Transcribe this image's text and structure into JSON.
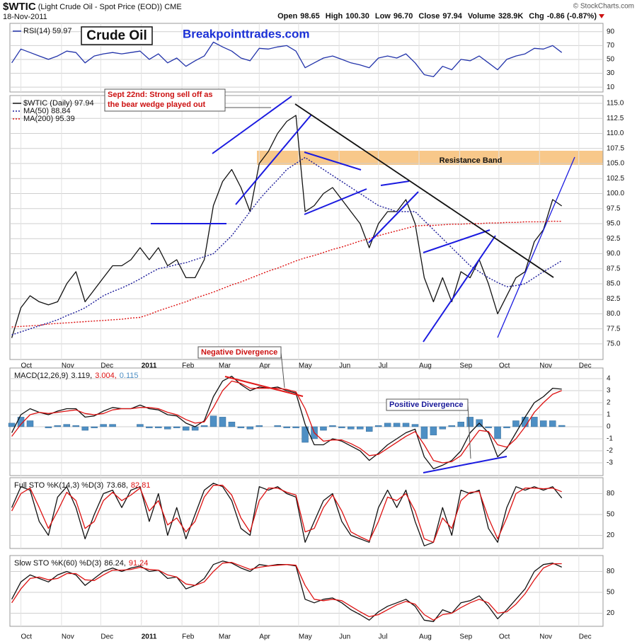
{
  "header": {
    "symbol": "$WTIC",
    "description": "(Light Crude Oil - Spot Price (EOD))",
    "exchange": "CME",
    "date": "18-Nov-2011",
    "copyright": "© StockCharts.com",
    "quote": [
      [
        "Open",
        "98.65"
      ],
      [
        "High",
        "100.30"
      ],
      [
        "Low",
        "96.70"
      ],
      [
        "Close",
        "97.94"
      ],
      [
        "Volume",
        "328.9K"
      ],
      [
        "Chg",
        "-0.86 (-0.87%)"
      ]
    ]
  },
  "chart_data": [
    {
      "type": "line",
      "annotations": [
        "Crude Oil",
        "Breakpointtrades.com"
      ],
      "xlim": [
        -0.2,
        64.5
      ],
      "ylim": [
        3,
        102
      ],
      "yticks": [
        90,
        70,
        50,
        30,
        10
      ],
      "grid": true,
      "series": [
        {
          "name": "RSI(14) 59.97",
          "color": "#2233aa",
          "values": [
            45,
            65,
            60,
            55,
            50,
            55,
            62,
            60,
            45,
            55,
            58,
            60,
            58,
            60,
            62,
            50,
            58,
            45,
            52,
            40,
            48,
            55,
            75,
            68,
            62,
            52,
            48,
            66,
            65,
            68,
            70,
            62,
            38,
            45,
            52,
            55,
            50,
            45,
            42,
            38,
            52,
            55,
            52,
            58,
            45,
            28,
            25,
            40,
            35,
            50,
            48,
            55,
            45,
            35,
            50,
            55,
            58,
            66,
            65,
            70,
            59.97
          ]
        }
      ]
    },
    {
      "type": "line",
      "annotations": [
        "Sept 22nd: Strong sell off as",
        "the bear wedge played out",
        "Resistance Band"
      ],
      "xlim": [
        -0.2,
        64.5
      ],
      "ylim": [
        72.4,
        116.3
      ],
      "grid": true,
      "xticks": [
        {
          "value": 1,
          "label": "Oct"
        },
        {
          "value": 5.43,
          "label": "Nov"
        },
        {
          "value": 9.71,
          "label": "Dec"
        },
        {
          "value": 14.14,
          "label": "2011"
        },
        {
          "value": 18.57,
          "label": "Feb"
        },
        {
          "value": 22.57,
          "label": "Mar"
        },
        {
          "value": 27,
          "label": "Apr"
        },
        {
          "value": 31.29,
          "label": "May"
        },
        {
          "value": 35.71,
          "label": "Jun"
        },
        {
          "value": 40,
          "label": "Jul"
        },
        {
          "value": 44.43,
          "label": "Aug"
        },
        {
          "value": 48.86,
          "label": "Sep"
        },
        {
          "value": 53.14,
          "label": "Oct"
        },
        {
          "value": 57.57,
          "label": "Nov"
        },
        {
          "value": 61.86,
          "label": "Dec"
        }
      ],
      "yticks": [
        {
          "value": 75,
          "label": "75.0"
        },
        {
          "value": 77.5,
          "label": "77.5"
        },
        {
          "value": 80,
          "label": "80.0"
        },
        {
          "value": 82.5,
          "label": "82.5"
        },
        {
          "value": 85,
          "label": "85.0"
        },
        {
          "value": 87.5,
          "label": "87.5"
        },
        {
          "value": 90,
          "label": "90.0"
        },
        {
          "value": 92.5,
          "label": "92.5"
        },
        {
          "value": 95,
          "label": "95.0"
        },
        {
          "value": 97.5,
          "label": "97.5"
        },
        {
          "value": 100,
          "label": "100.0"
        },
        {
          "value": 102.5,
          "label": "102.5"
        },
        {
          "value": 105,
          "label": "105.0"
        },
        {
          "value": 107.5,
          "label": "107.5"
        },
        {
          "value": 110,
          "label": "110.0"
        },
        {
          "value": 112.5,
          "label": "112.5"
        },
        {
          "value": 115,
          "label": "115.0"
        }
      ],
      "series": [
        {
          "name": "$WTIC (Daily) 97.94",
          "color": "#111111",
          "values": [
            76,
            81,
            83,
            82,
            81.5,
            82,
            85,
            87,
            82,
            84,
            86,
            88,
            88,
            89,
            91,
            89,
            91,
            88,
            89,
            86,
            86,
            89,
            98,
            102,
            104,
            101,
            97,
            105,
            107,
            110,
            112,
            113,
            97,
            98,
            100,
            101,
            99,
            97,
            95,
            91,
            95,
            97,
            97,
            99,
            95,
            86,
            82,
            86,
            82,
            87,
            86,
            89,
            85,
            80,
            83,
            86,
            87,
            92,
            94,
            99,
            97.94
          ]
        },
        {
          "name": "MA(50) 88.84",
          "color": "#1a1a99",
          "dash": "dotted",
          "values": [
            76.5,
            77,
            77.5,
            78,
            78.5,
            79,
            79.7,
            80.3,
            81,
            82,
            83,
            83.7,
            84.3,
            85,
            85.8,
            86.7,
            87.5,
            87.8,
            88.2,
            88.5,
            89,
            89.5,
            90,
            91.5,
            93,
            95,
            97,
            99,
            100.7,
            102.3,
            104,
            105,
            106,
            105,
            104,
            103,
            102,
            101,
            100,
            99,
            98,
            97.5,
            97,
            97,
            97,
            95.5,
            94,
            92.5,
            91,
            89.5,
            88,
            87,
            86,
            85.2,
            84.5,
            84.7,
            85,
            86,
            87,
            87.9,
            88.84
          ]
        },
        {
          "name": "MA(200) 95.39",
          "color": "#dd1111",
          "dash": "dotted",
          "values": [
            77.8,
            77.9,
            78.0,
            78.1,
            78.3,
            78.4,
            78.5,
            78.6,
            78.7,
            78.8,
            78.9,
            79.0,
            79.1,
            79.3,
            79.4,
            79.9,
            80.5,
            81.0,
            81.5,
            82.0,
            82.6,
            83.1,
            83.6,
            84.2,
            84.8,
            85.3,
            85.9,
            86.5,
            87.1,
            87.6,
            88.2,
            88.8,
            89.3,
            89.7,
            90.2,
            90.7,
            91.1,
            91.6,
            92.1,
            92.5,
            93.0,
            93.4,
            93.8,
            94.2,
            94.6,
            94.7,
            94.7,
            94.8,
            94.9,
            94.9,
            95.0,
            95.0,
            95.1,
            95.1,
            95.2,
            95.2,
            95.3,
            95.3,
            95.3,
            95.4,
            95.39
          ]
        }
      ]
    },
    {
      "type": "line",
      "label": "MACD(12,26,9)",
      "annotations": [
        "Negative Divergence",
        "Positive Divergence"
      ],
      "xlim": [
        -0.2,
        64.5
      ],
      "ylim": [
        -4.06,
        4.88
      ],
      "yticks": [
        4,
        3,
        2,
        1,
        0,
        -1,
        -2,
        -3
      ],
      "grid": true,
      "series": [
        {
          "name": "3.119,",
          "color": "#111111",
          "values": [
            -0.5,
            1,
            1.5,
            1.2,
            1,
            1.3,
            1.5,
            1.5,
            0.8,
            0.9,
            1.3,
            1.6,
            1.5,
            1.5,
            1.8,
            1.5,
            1.4,
            1,
            0.9,
            0.3,
            0,
            0.5,
            2.5,
            3.8,
            4.2,
            3.5,
            3,
            3.3,
            3.2,
            3.3,
            3,
            2.8,
            0.2,
            -1.5,
            -1.5,
            -1,
            -1.2,
            -1.6,
            -2,
            -2.8,
            -2.2,
            -1.5,
            -1,
            -0.5,
            -0.2,
            -2.5,
            -3.5,
            -3.2,
            -2.8,
            -2,
            -0.5,
            0.3,
            -0.5,
            -2.5,
            -1.8,
            -0.5,
            0.8,
            2,
            2.5,
            3.2,
            3.119
          ]
        },
        {
          "name": "3.004,",
          "color": "#dd1111",
          "values": [
            -0.8,
            0.2,
            1,
            1.2,
            1.1,
            1.2,
            1.3,
            1.4,
            1.1,
            1,
            1.1,
            1.4,
            1.5,
            1.5,
            1.6,
            1.6,
            1.5,
            1.2,
            1,
            0.6,
            0.3,
            0.4,
            1.6,
            3,
            3.8,
            3.6,
            3.2,
            3.2,
            3.2,
            3.2,
            3.1,
            2.9,
            1.5,
            -0.5,
            -1.2,
            -1.1,
            -1.1,
            -1.4,
            -1.8,
            -2.4,
            -2.3,
            -1.8,
            -1.3,
            -0.8,
            -0.4,
            -1.5,
            -2.8,
            -3,
            -2.9,
            -2.4,
            -1.3,
            -0.3,
            -0.4,
            -1.5,
            -1.7,
            -1,
            0,
            1.2,
            2,
            2.7,
            3.004
          ]
        },
        {
          "name": "0.115",
          "color": "#4e8fc4",
          "type": "bar",
          "values": [
            0.3,
            0.8,
            0.5,
            0,
            -0.1,
            0.1,
            0.2,
            0.1,
            -0.3,
            -0.1,
            0.2,
            0.2,
            0,
            0,
            0.2,
            -0.1,
            -0.1,
            -0.2,
            -0.1,
            -0.3,
            -0.3,
            0.1,
            0.9,
            0.8,
            0.4,
            -0.1,
            -0.2,
            0.1,
            0,
            0.1,
            -0.1,
            -0.1,
            -1.3,
            -1,
            -0.3,
            0.1,
            -0.1,
            -0.2,
            -0.2,
            -0.4,
            0.1,
            0.3,
            0.3,
            0.3,
            0.2,
            -1,
            -0.7,
            -0.2,
            0.1,
            0.4,
            0.8,
            0.6,
            -0.1,
            -1,
            -0.1,
            0.5,
            0.8,
            0.8,
            0.5,
            0.5,
            0.115
          ]
        }
      ]
    },
    {
      "type": "line",
      "label": "Full STO %K(14,3) %D(3)",
      "xlim": [
        -0.2,
        64.5
      ],
      "ylim": [
        1.2,
        102.9
      ],
      "yticks": [
        80,
        50,
        20
      ],
      "grid": true,
      "series": [
        {
          "name": "73.68,",
          "color": "#111111",
          "values": [
            60,
            90,
            85,
            40,
            20,
            75,
            90,
            60,
            15,
            50,
            80,
            85,
            60,
            85,
            90,
            40,
            80,
            20,
            60,
            15,
            50,
            85,
            95,
            90,
            70,
            30,
            20,
            90,
            85,
            90,
            80,
            75,
            10,
            40,
            70,
            80,
            40,
            20,
            15,
            10,
            60,
            85,
            60,
            85,
            40,
            5,
            10,
            60,
            20,
            85,
            80,
            85,
            30,
            10,
            60,
            90,
            85,
            90,
            85,
            90,
            73.68
          ]
        },
        {
          "name": "82.81",
          "color": "#dd1111",
          "values": [
            55,
            80,
            88,
            60,
            30,
            55,
            82,
            70,
            30,
            40,
            70,
            82,
            70,
            78,
            88,
            55,
            70,
            35,
            45,
            25,
            40,
            75,
            92,
            92,
            78,
            45,
            25,
            70,
            88,
            88,
            82,
            78,
            25,
            30,
            60,
            78,
            55,
            25,
            18,
            12,
            40,
            75,
            70,
            80,
            55,
            15,
            10,
            45,
            30,
            70,
            82,
            83,
            45,
            15,
            45,
            80,
            88,
            88,
            87,
            88,
            82.81
          ]
        }
      ]
    },
    {
      "type": "line",
      "label": "Slow STO %K(60) %D(3)",
      "xlim": [
        -0.2,
        64.5
      ],
      "ylim": [
        1.2,
        102.9
      ],
      "yticks": [
        80,
        50,
        20
      ],
      "grid": true,
      "xticks": [
        {
          "value": 1,
          "label": "Oct"
        },
        {
          "value": 5.43,
          "label": "Nov"
        },
        {
          "value": 9.71,
          "label": "Dec"
        },
        {
          "value": 14.14,
          "label": "2011"
        },
        {
          "value": 18.57,
          "label": "Feb"
        },
        {
          "value": 22.57,
          "label": "Mar"
        },
        {
          "value": 27,
          "label": "Apr"
        },
        {
          "value": 31.29,
          "label": "May"
        },
        {
          "value": 35.71,
          "label": "Jun"
        },
        {
          "value": 40,
          "label": "Jul"
        },
        {
          "value": 44.43,
          "label": "Aug"
        },
        {
          "value": 48.86,
          "label": "Sep"
        },
        {
          "value": 53.14,
          "label": "Oct"
        },
        {
          "value": 57.57,
          "label": "Nov"
        },
        {
          "value": 61.86,
          "label": "Dec"
        }
      ],
      "series": [
        {
          "name": "86.24,",
          "color": "#111111",
          "values": [
            40,
            65,
            75,
            70,
            65,
            75,
            80,
            75,
            60,
            70,
            80,
            85,
            80,
            85,
            88,
            80,
            82,
            70,
            72,
            55,
            60,
            70,
            90,
            95,
            92,
            85,
            80,
            90,
            88,
            90,
            90,
            88,
            40,
            35,
            40,
            42,
            35,
            25,
            18,
            10,
            22,
            30,
            35,
            40,
            30,
            10,
            8,
            25,
            20,
            35,
            38,
            45,
            30,
            12,
            25,
            40,
            55,
            80,
            90,
            92,
            86.24
          ]
        },
        {
          "name": "91.24",
          "color": "#dd1111",
          "values": [
            35,
            55,
            70,
            72,
            68,
            70,
            77,
            77,
            68,
            67,
            75,
            82,
            82,
            83,
            86,
            83,
            82,
            75,
            72,
            62,
            60,
            65,
            80,
            92,
            93,
            88,
            83,
            86,
            88,
            89,
            90,
            89,
            60,
            40,
            38,
            40,
            38,
            30,
            22,
            15,
            18,
            25,
            32,
            37,
            33,
            18,
            10,
            18,
            20,
            28,
            35,
            40,
            35,
            20,
            22,
            33,
            48,
            68,
            85,
            91,
            91.24
          ]
        }
      ]
    }
  ]
}
